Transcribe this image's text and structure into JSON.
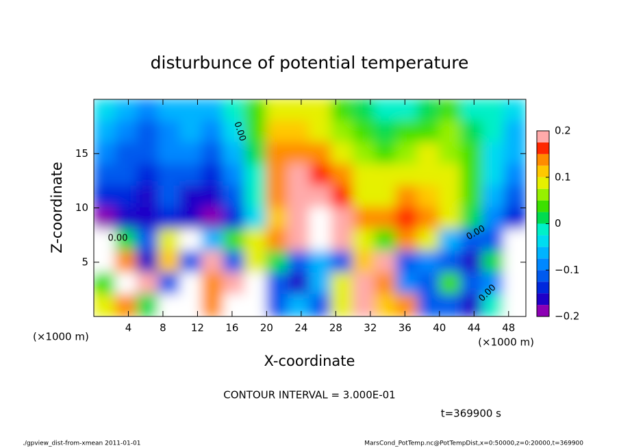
{
  "chart_data": {
    "type": "contour",
    "title": "disturbunce of potential temperature",
    "x_label": "X-coordinate",
    "y_label": "Z-coordinate",
    "x_unit_label": "(×1000 m)",
    "xlim": [
      0,
      50
    ],
    "ylim": [
      0,
      20
    ],
    "xticks": [
      4,
      8,
      12,
      16,
      20,
      24,
      28,
      32,
      36,
      40,
      44,
      48
    ],
    "yticks": [
      5,
      10,
      15
    ],
    "x": [
      1.25,
      3.75,
      6.25,
      8.75,
      11.25,
      13.75,
      16.25,
      18.75,
      21.25,
      23.75,
      26.25,
      28.75,
      31.25,
      33.75,
      36.25,
      38.75,
      41.25,
      43.75,
      46.25,
      48.75
    ],
    "y": [
      19,
      17,
      15,
      13,
      11,
      9,
      7,
      5,
      3,
      1
    ],
    "z": [
      [
        -0.04,
        -0.06,
        -0.08,
        -0.06,
        -0.05,
        -0.06,
        -0.02,
        0.03,
        0.09,
        0.1,
        0.08,
        0.05,
        0.02,
        0.0,
        0.0,
        0.02,
        0.04,
        0.0,
        -0.02,
        -0.04
      ],
      [
        -0.06,
        -0.08,
        -0.1,
        -0.08,
        -0.07,
        -0.08,
        -0.04,
        0.03,
        0.11,
        0.12,
        0.1,
        0.07,
        0.04,
        0.02,
        0.03,
        0.05,
        0.06,
        0.02,
        -0.02,
        -0.05
      ],
      [
        -0.08,
        -0.1,
        -0.11,
        -0.09,
        -0.09,
        -0.1,
        -0.06,
        0.02,
        0.13,
        0.15,
        0.13,
        0.1,
        0.06,
        0.05,
        0.06,
        0.08,
        0.07,
        0.03,
        -0.03,
        -0.07
      ],
      [
        -0.1,
        -0.12,
        -0.13,
        -0.11,
        -0.12,
        -0.13,
        -0.08,
        0.0,
        0.14,
        0.18,
        0.16,
        0.13,
        0.08,
        0.08,
        0.1,
        0.1,
        0.08,
        0.04,
        -0.04,
        -0.09
      ],
      [
        -0.14,
        -0.13,
        -0.15,
        -0.12,
        -0.15,
        -0.17,
        -0.1,
        -0.02,
        0.14,
        0.19,
        0.19,
        0.16,
        0.1,
        0.1,
        0.13,
        0.12,
        0.09,
        0.03,
        -0.06,
        -0.1
      ],
      [
        -0.2,
        -0.16,
        -0.17,
        -0.14,
        -0.17,
        -0.2,
        -0.13,
        -0.03,
        0.12,
        0.2,
        0.22,
        0.19,
        0.13,
        0.14,
        0.16,
        0.14,
        0.1,
        0.02,
        -0.08,
        -0.14
      ],
      [
        0.25,
        0.02,
        -0.1,
        0.1,
        0.25,
        -0.05,
        0.05,
        0.1,
        0.15,
        0.2,
        0.25,
        0.2,
        0.1,
        0.05,
        0.15,
        0.1,
        -0.05,
        -0.1,
        -0.12,
        0.25
      ],
      [
        0.25,
        0.15,
        -0.15,
        0.12,
        -0.1,
        0.2,
        -0.12,
        0.1,
        0.02,
        -0.12,
        -0.05,
        -0.1,
        0.12,
        0.18,
        -0.12,
        -0.08,
        -0.1,
        -0.15,
        0.02,
        0.25
      ],
      [
        0.05,
        0.25,
        0.18,
        -0.12,
        0.25,
        0.15,
        0.2,
        0.25,
        -0.12,
        -0.15,
        -0.05,
        0.08,
        0.18,
        0.15,
        -0.08,
        -0.12,
        0.05,
        -0.1,
        -0.08,
        0.25
      ],
      [
        0.1,
        0.15,
        0.02,
        0.25,
        0.25,
        0.15,
        0.25,
        0.25,
        -0.1,
        -0.05,
        -0.12,
        0.1,
        0.2,
        0.12,
        0.15,
        -0.1,
        -0.12,
        -0.15,
        0.0,
        0.25
      ]
    ],
    "levels": [
      -0.2,
      -0.175,
      -0.15,
      -0.125,
      -0.1,
      -0.075,
      -0.05,
      -0.025,
      0,
      0.025,
      0.05,
      0.075,
      0.1,
      0.125,
      0.15,
      0.175,
      0.2
    ],
    "colors": [
      "#8c00b4",
      "#1e00c8",
      "#0028dc",
      "#005aee",
      "#0088ff",
      "#00b4ff",
      "#00dcf0",
      "#00f0c8",
      "#00dc50",
      "#3ce000",
      "#96f000",
      "#e6f000",
      "#ffc800",
      "#ff8c00",
      "#ff2800",
      "#ffaaaa"
    ],
    "cbar_lim": [
      -0.2,
      0.2
    ],
    "cbar_ticks": [
      0.2,
      0.1,
      0,
      {
        "value": -0.1,
        "label": "−0.1"
      },
      {
        "value": -0.2,
        "label": "−0.2"
      }
    ],
    "contour_labels": [
      "0.00",
      "0.00",
      "0.00",
      "0.00"
    ],
    "annotation": "CONTOUR INTERVAL = 3.000E-01",
    "time_label": "t=369900 s",
    "footer_left": "./gpview_dist-from-xmean  2011-01-01",
    "footer_right": "MarsCond_PotTemp.nc@PotTempDist,x=0:50000,z=0:20000,t=369900"
  }
}
